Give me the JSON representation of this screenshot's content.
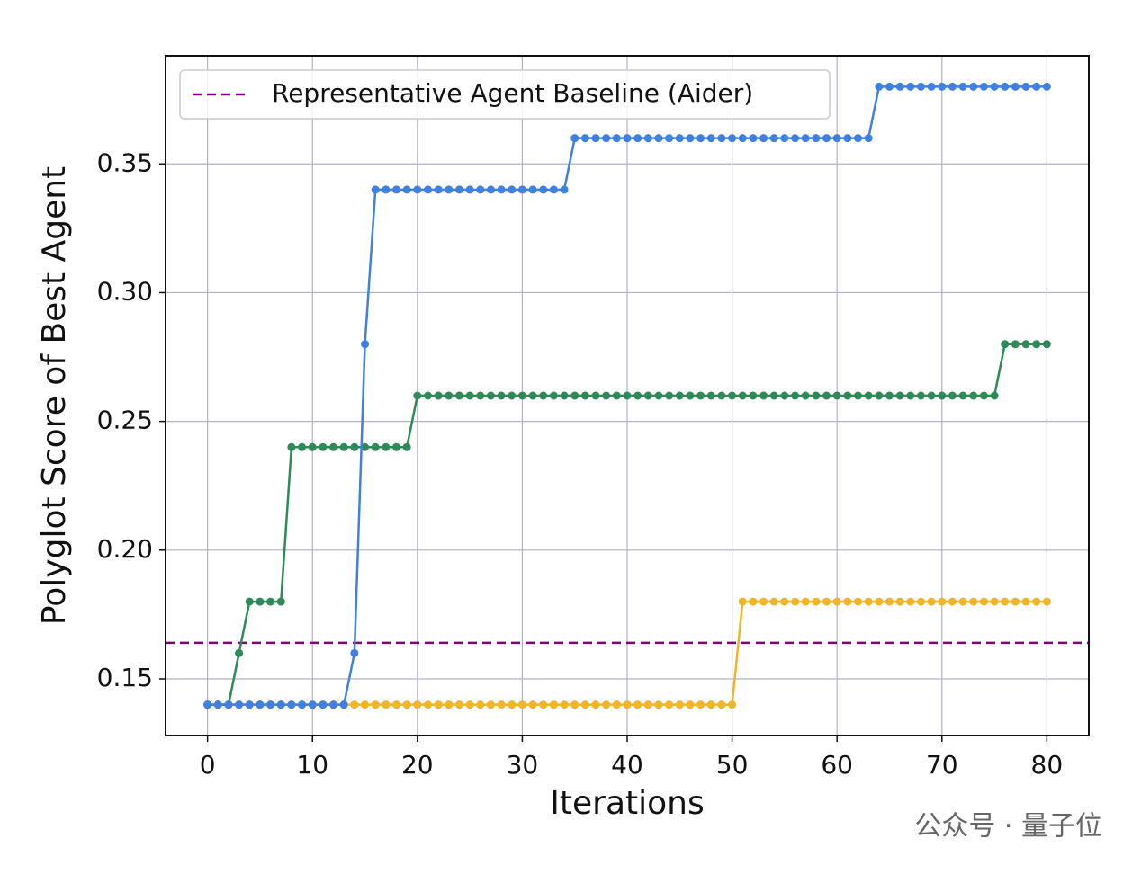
{
  "chart_data": {
    "type": "line",
    "xlabel": "Iterations",
    "ylabel": "Polyglot Score of Best Agent",
    "x": [
      0,
      1,
      2,
      3,
      4,
      5,
      6,
      7,
      8,
      9,
      10,
      11,
      12,
      13,
      14,
      15,
      16,
      17,
      18,
      19,
      20,
      21,
      22,
      23,
      24,
      25,
      26,
      27,
      28,
      29,
      30,
      31,
      32,
      33,
      34,
      35,
      36,
      37,
      38,
      39,
      40,
      41,
      42,
      43,
      44,
      45,
      46,
      47,
      48,
      49,
      50,
      51,
      52,
      53,
      54,
      55,
      56,
      57,
      58,
      59,
      60,
      61,
      62,
      63,
      64,
      65,
      66,
      67,
      68,
      69,
      70,
      71,
      72,
      73,
      74,
      75,
      76,
      77,
      78,
      79,
      80
    ],
    "series": [
      {
        "color": "#f2b428",
        "values": [
          0.14,
          0.14,
          0.14,
          0.14,
          0.14,
          0.14,
          0.14,
          0.14,
          0.14,
          0.14,
          0.14,
          0.14,
          0.14,
          0.14,
          0.14,
          0.14,
          0.14,
          0.14,
          0.14,
          0.14,
          0.14,
          0.14,
          0.14,
          0.14,
          0.14,
          0.14,
          0.14,
          0.14,
          0.14,
          0.14,
          0.14,
          0.14,
          0.14,
          0.14,
          0.14,
          0.14,
          0.14,
          0.14,
          0.14,
          0.14,
          0.14,
          0.14,
          0.14,
          0.14,
          0.14,
          0.14,
          0.14,
          0.14,
          0.14,
          0.14,
          0.14,
          0.18,
          0.18,
          0.18,
          0.18,
          0.18,
          0.18,
          0.18,
          0.18,
          0.18,
          0.18,
          0.18,
          0.18,
          0.18,
          0.18,
          0.18,
          0.18,
          0.18,
          0.18,
          0.18,
          0.18,
          0.18,
          0.18,
          0.18,
          0.18,
          0.18,
          0.18,
          0.18,
          0.18,
          0.18,
          0.18
        ]
      },
      {
        "color": "#2e8b57",
        "values": [
          0.14,
          0.14,
          0.14,
          0.16,
          0.18,
          0.18,
          0.18,
          0.18,
          0.24,
          0.24,
          0.24,
          0.24,
          0.24,
          0.24,
          0.24,
          0.24,
          0.24,
          0.24,
          0.24,
          0.24,
          0.26,
          0.26,
          0.26,
          0.26,
          0.26,
          0.26,
          0.26,
          0.26,
          0.26,
          0.26,
          0.26,
          0.26,
          0.26,
          0.26,
          0.26,
          0.26,
          0.26,
          0.26,
          0.26,
          0.26,
          0.26,
          0.26,
          0.26,
          0.26,
          0.26,
          0.26,
          0.26,
          0.26,
          0.26,
          0.26,
          0.26,
          0.26,
          0.26,
          0.26,
          0.26,
          0.26,
          0.26,
          0.26,
          0.26,
          0.26,
          0.26,
          0.26,
          0.26,
          0.26,
          0.26,
          0.26,
          0.26,
          0.26,
          0.26,
          0.26,
          0.26,
          0.26,
          0.26,
          0.26,
          0.26,
          0.26,
          0.28,
          0.28,
          0.28,
          0.28,
          0.28
        ]
      },
      {
        "color": "#4080e0",
        "values": [
          0.14,
          0.14,
          0.14,
          0.14,
          0.14,
          0.14,
          0.14,
          0.14,
          0.14,
          0.14,
          0.14,
          0.14,
          0.14,
          0.14,
          0.16,
          0.28,
          0.34,
          0.34,
          0.34,
          0.34,
          0.34,
          0.34,
          0.34,
          0.34,
          0.34,
          0.34,
          0.34,
          0.34,
          0.34,
          0.34,
          0.34,
          0.34,
          0.34,
          0.34,
          0.34,
          0.36,
          0.36,
          0.36,
          0.36,
          0.36,
          0.36,
          0.36,
          0.36,
          0.36,
          0.36,
          0.36,
          0.36,
          0.36,
          0.36,
          0.36,
          0.36,
          0.36,
          0.36,
          0.36,
          0.36,
          0.36,
          0.36,
          0.36,
          0.36,
          0.36,
          0.36,
          0.36,
          0.36,
          0.36,
          0.38,
          0.38,
          0.38,
          0.38,
          0.38,
          0.38,
          0.38,
          0.38,
          0.38,
          0.38,
          0.38,
          0.38,
          0.38,
          0.38,
          0.38,
          0.38,
          0.38
        ]
      }
    ],
    "baseline": {
      "label": "Representative Agent Baseline (Aider)",
      "value": 0.164,
      "color": "#800080"
    },
    "xlim": [
      -4,
      84
    ],
    "ylim": [
      0.128,
      0.392
    ],
    "xticks": [
      0,
      10,
      20,
      30,
      40,
      50,
      60,
      70,
      80
    ],
    "yticks": [
      0.15,
      {
        "value": 0.2,
        "label": "0.20"
      },
      0.25,
      {
        "value": 0.3,
        "label": "0.30"
      },
      0.35
    ],
    "grid": true,
    "legend": "upper left"
  },
  "watermark": "公众号 · 量子位"
}
